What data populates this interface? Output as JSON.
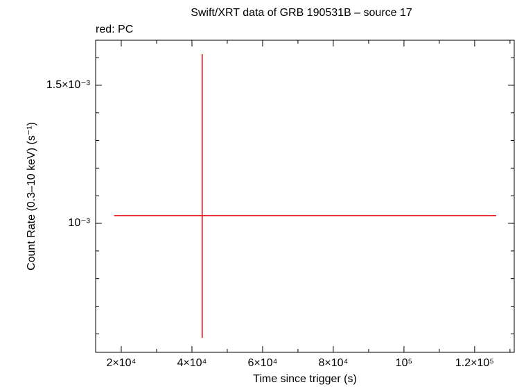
{
  "chart_data": {
    "type": "errorbar",
    "title": "Swift/XRT data of GRB 190531B – source 17",
    "subtitle": "red: PC",
    "x_label": "Time since trigger (s)",
    "y_label": "Count Rate (0.3–10 keV) (s⁻¹)",
    "xlim": [
      12750,
      131200
    ],
    "ylim": [
      0.000533,
      0.001663
    ],
    "xticks": [
      {
        "value": 20000,
        "label": "2×10⁴"
      },
      {
        "value": 40000,
        "label": "4×10⁴"
      },
      {
        "value": 60000,
        "label": "6×10⁴"
      },
      {
        "value": 80000,
        "label": "8×10⁴"
      },
      {
        "value": 100000,
        "label": "10⁵"
      },
      {
        "value": 120000,
        "label": "1.2×10⁵"
      }
    ],
    "xminorticks": [
      30000,
      50000,
      70000,
      90000,
      110000,
      130000
    ],
    "yticks": [
      {
        "value": 0.001,
        "label": "10⁻³"
      },
      {
        "value": 0.0015,
        "label": "1.5×10⁻³"
      }
    ],
    "yminorticks": [
      0.0006,
      0.0007,
      0.0008,
      0.0009,
      0.0011,
      0.0012,
      0.0013,
      0.0014,
      0.0016
    ],
    "series": [
      {
        "name": "PC",
        "color": "#e00000",
        "x": [
          42900
        ],
        "xerr_minus": [
          24900
        ],
        "xerr_plus": [
          83200
        ],
        "y": [
          0.001028
        ],
        "yerr_minus": [
          0.000443
        ],
        "yerr_plus": [
          0.000585
        ]
      }
    ]
  }
}
